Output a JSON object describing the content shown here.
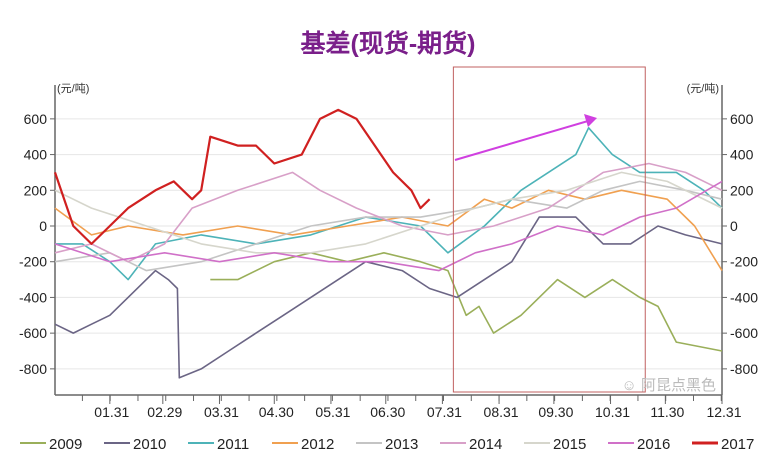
{
  "chart_data": {
    "type": "line",
    "title": "基差(现货-期货)",
    "ylabel_left": "(元/吨)",
    "ylabel_right": "(元/吨)",
    "ylim": [
      -900,
      750
    ],
    "yticks": [
      -800,
      -600,
      -400,
      -200,
      0,
      200,
      400,
      600
    ],
    "xlim": [
      0,
      365
    ],
    "xticks": [
      {
        "day": 30,
        "label": "01.31"
      },
      {
        "day": 59,
        "label": "02.29"
      },
      {
        "day": 90,
        "label": "03.31"
      },
      {
        "day": 120,
        "label": "04.30"
      },
      {
        "day": 151,
        "label": "05.31"
      },
      {
        "day": 181,
        "label": "06.30"
      },
      {
        "day": 212,
        "label": "07.31"
      },
      {
        "day": 243,
        "label": "08.31"
      },
      {
        "day": 273,
        "label": "09.30"
      },
      {
        "day": 304,
        "label": "10.31"
      },
      {
        "day": 334,
        "label": "11.30"
      },
      {
        "day": 365,
        "label": "12.31"
      }
    ],
    "legend_position": "bottom",
    "grid": true,
    "series": [
      {
        "name": "2009",
        "color": "#9aaf5a",
        "x": [
          85,
          100,
          120,
          140,
          160,
          180,
          200,
          215,
          225,
          232,
          240,
          255,
          275,
          290,
          305,
          320,
          330,
          340,
          365
        ],
        "y": [
          -300,
          -300,
          -200,
          -150,
          -200,
          -150,
          -200,
          -250,
          -500,
          -450,
          -600,
          -500,
          -300,
          -400,
          -300,
          -400,
          -450,
          -650,
          -700
        ]
      },
      {
        "name": "2010",
        "color": "#6b6585",
        "x": [
          0,
          10,
          20,
          30,
          40,
          55,
          62,
          67,
          68,
          80,
          95,
          110,
          125,
          140,
          155,
          170,
          190,
          205,
          220,
          235,
          250,
          265,
          285,
          300,
          315,
          330,
          345,
          365
        ],
        "y": [
          -550,
          -600,
          -550,
          -500,
          -400,
          -250,
          -300,
          -350,
          -850,
          -800,
          -700,
          -600,
          -500,
          -400,
          -300,
          -200,
          -250,
          -350,
          -400,
          -300,
          -200,
          50,
          50,
          -100,
          -100,
          0,
          -50,
          -100
        ]
      },
      {
        "name": "2011",
        "color": "#4db3b8",
        "x": [
          0,
          15,
          30,
          40,
          55,
          80,
          110,
          140,
          170,
          200,
          215,
          235,
          255,
          270,
          285,
          292,
          305,
          320,
          340,
          355,
          365
        ],
        "y": [
          -100,
          -100,
          -200,
          -300,
          -100,
          -50,
          -100,
          -50,
          50,
          0,
          -150,
          0,
          200,
          300,
          400,
          550,
          400,
          300,
          300,
          200,
          100
        ]
      },
      {
        "name": "2012",
        "color": "#f0a050",
        "x": [
          0,
          20,
          40,
          70,
          100,
          130,
          160,
          190,
          215,
          235,
          250,
          270,
          290,
          310,
          335,
          350,
          365
        ],
        "y": [
          100,
          -50,
          0,
          -50,
          0,
          -50,
          0,
          50,
          0,
          150,
          100,
          200,
          150,
          200,
          150,
          0,
          -250
        ]
      },
      {
        "name": "2013",
        "color": "#c4c4c4",
        "x": [
          0,
          30,
          50,
          80,
          110,
          140,
          170,
          200,
          230,
          250,
          280,
          300,
          320,
          345,
          365
        ],
        "y": [
          -200,
          -150,
          -250,
          -200,
          -100,
          0,
          50,
          50,
          100,
          150,
          100,
          200,
          250,
          200,
          150
        ]
      },
      {
        "name": "2014",
        "color": "#d8a0c8",
        "x": [
          0,
          20,
          40,
          60,
          75,
          100,
          130,
          145,
          165,
          190,
          215,
          240,
          270,
          300,
          325,
          345,
          365
        ],
        "y": [
          -150,
          -100,
          -200,
          -100,
          100,
          200,
          300,
          200,
          100,
          0,
          -50,
          0,
          100,
          300,
          350,
          300,
          200
        ]
      },
      {
        "name": "2015",
        "color": "#d6d6cc",
        "x": [
          0,
          20,
          50,
          80,
          110,
          140,
          170,
          200,
          230,
          250,
          280,
          310,
          335,
          365
        ],
        "y": [
          200,
          100,
          0,
          -100,
          -150,
          -150,
          -100,
          0,
          100,
          150,
          200,
          300,
          250,
          100
        ]
      },
      {
        "name": "2016",
        "color": "#d070c8",
        "x": [
          0,
          30,
          60,
          90,
          120,
          150,
          180,
          210,
          230,
          250,
          275,
          300,
          320,
          340,
          365
        ],
        "y": [
          -100,
          -200,
          -150,
          -200,
          -150,
          -200,
          -200,
          -250,
          -150,
          -100,
          0,
          -50,
          50,
          100,
          250
        ]
      },
      {
        "name": "2017",
        "color": "#d02020",
        "x": [
          0,
          10,
          20,
          30,
          40,
          55,
          65,
          75,
          80,
          85,
          100,
          110,
          120,
          135,
          145,
          155,
          165,
          175,
          185,
          195,
          200,
          205
        ],
        "y": [
          300,
          0,
          -100,
          0,
          100,
          200,
          250,
          150,
          200,
          500,
          450,
          450,
          350,
          400,
          600,
          650,
          600,
          450,
          300,
          200,
          100,
          150
        ]
      }
    ],
    "annotation": {
      "highlight_range_days": [
        218,
        323
      ],
      "arrow_color": "#d040e0",
      "box_color": "#c06060"
    }
  },
  "watermark": "阿昆点黑色"
}
